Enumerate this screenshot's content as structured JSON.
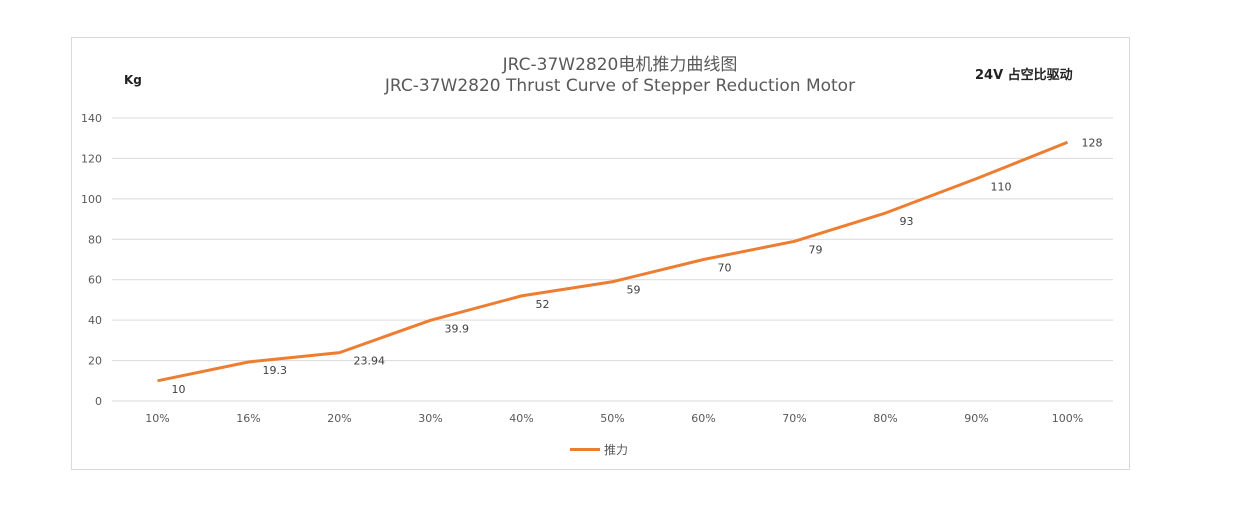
{
  "chart_data": {
    "type": "line",
    "title": "JRC-37W2820电机推力曲线图",
    "subtitle": "JRC-37W2820 Thrust Curve of Stepper Reduction Motor",
    "annotation": "24V  占空比驱动",
    "xlabel": "",
    "ylabel": "Kg",
    "categories": [
      "10%",
      "16%",
      "20%",
      "30%",
      "40%",
      "50%",
      "60%",
      "70%",
      "80%",
      "90%",
      "100%"
    ],
    "series": [
      {
        "name": "推力",
        "values": [
          10,
          19.3,
          23.94,
          39.9,
          52,
          59,
          70,
          79,
          93,
          110,
          128
        ],
        "color": "#ed7d31"
      }
    ],
    "data_labels": [
      "10",
      "19.3",
      "23.94",
      "39.9",
      "52",
      "59",
      "70",
      "79",
      "93",
      "110",
      "128"
    ],
    "ylim": [
      0,
      140
    ],
    "yticks": [
      0,
      20,
      40,
      60,
      80,
      100,
      120,
      140
    ],
    "grid": true,
    "legend": "bottom"
  }
}
